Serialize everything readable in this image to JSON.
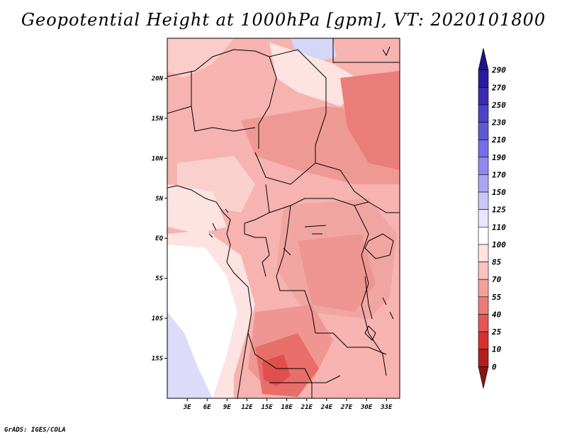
{
  "title": "Geopotential Height at 1000hPa [gpm], VT: 2020101800",
  "credit": "GrADS: IGES/COLA",
  "map": {
    "lat_labels": [
      "20N",
      "15N",
      "10N",
      "5N",
      "EQ",
      "5S",
      "10S",
      "15S"
    ],
    "lat_values": [
      20,
      15,
      10,
      5,
      0,
      -5,
      -10,
      -15
    ],
    "lon_labels": [
      "3E",
      "6E",
      "9E",
      "12E",
      "15E",
      "18E",
      "21E",
      "24E",
      "27E",
      "30E",
      "33E"
    ],
    "lon_values": [
      3,
      6,
      9,
      12,
      15,
      18,
      21,
      24,
      27,
      30,
      33
    ],
    "lon_range": [
      0,
      35
    ],
    "lat_range": [
      -20,
      25
    ]
  },
  "colorbar": {
    "labels": [
      "290",
      "270",
      "250",
      "230",
      "210",
      "190",
      "170",
      "150",
      "125",
      "110",
      "100",
      "85",
      "70",
      "55",
      "40",
      "25",
      "10",
      "0"
    ],
    "colors": [
      "#1e1486",
      "#281c9e",
      "#3a2db4",
      "#4b43c8",
      "#5d5ad8",
      "#746fe6",
      "#8d89ee",
      "#aaa6f4",
      "#c9c7f8",
      "#e6e6fc",
      "#ffffff",
      "#fde3e1",
      "#f9c2bf",
      "#f3a09c",
      "#ec7c78",
      "#e35855",
      "#d6332f",
      "#b11f1f",
      "#8a1414"
    ]
  }
}
